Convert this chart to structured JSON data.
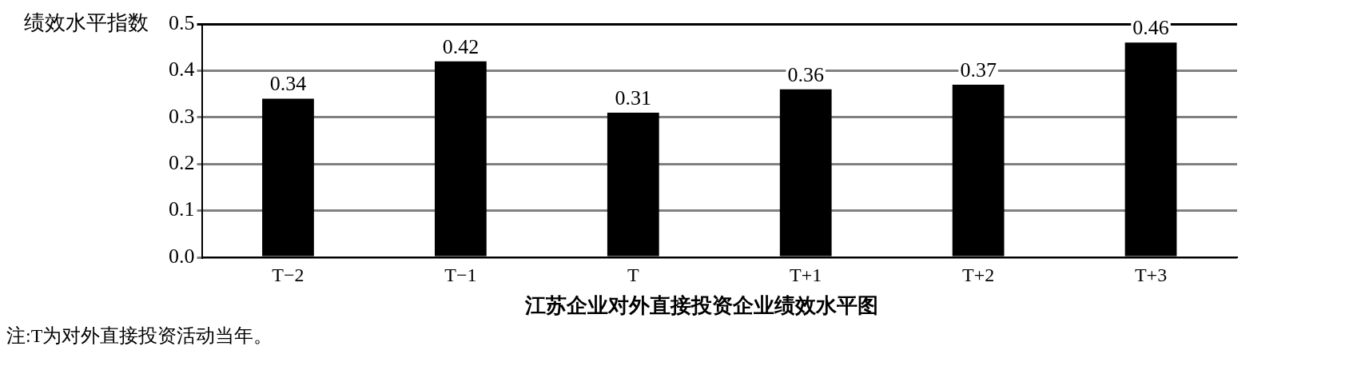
{
  "chart_data": {
    "type": "bar",
    "ylabel": "绩效水平指数",
    "title": "江苏企业对外直接投资企业绩效水平图",
    "annotations": [
      "注:T为对外直接投资活动当年。"
    ],
    "categories": [
      "T−2",
      "T−1",
      "T",
      "T+1",
      "T+2",
      "T+3"
    ],
    "values": [
      0.34,
      0.42,
      0.31,
      0.36,
      0.37,
      0.46
    ],
    "color": "#000000",
    "ylim": [
      0,
      0.5
    ],
    "yticks": [
      {
        "value": 0,
        "label": "0.0"
      },
      0.1,
      0.2,
      0.3,
      0.4,
      0.5
    ],
    "grid": "y",
    "data_labels": true
  }
}
